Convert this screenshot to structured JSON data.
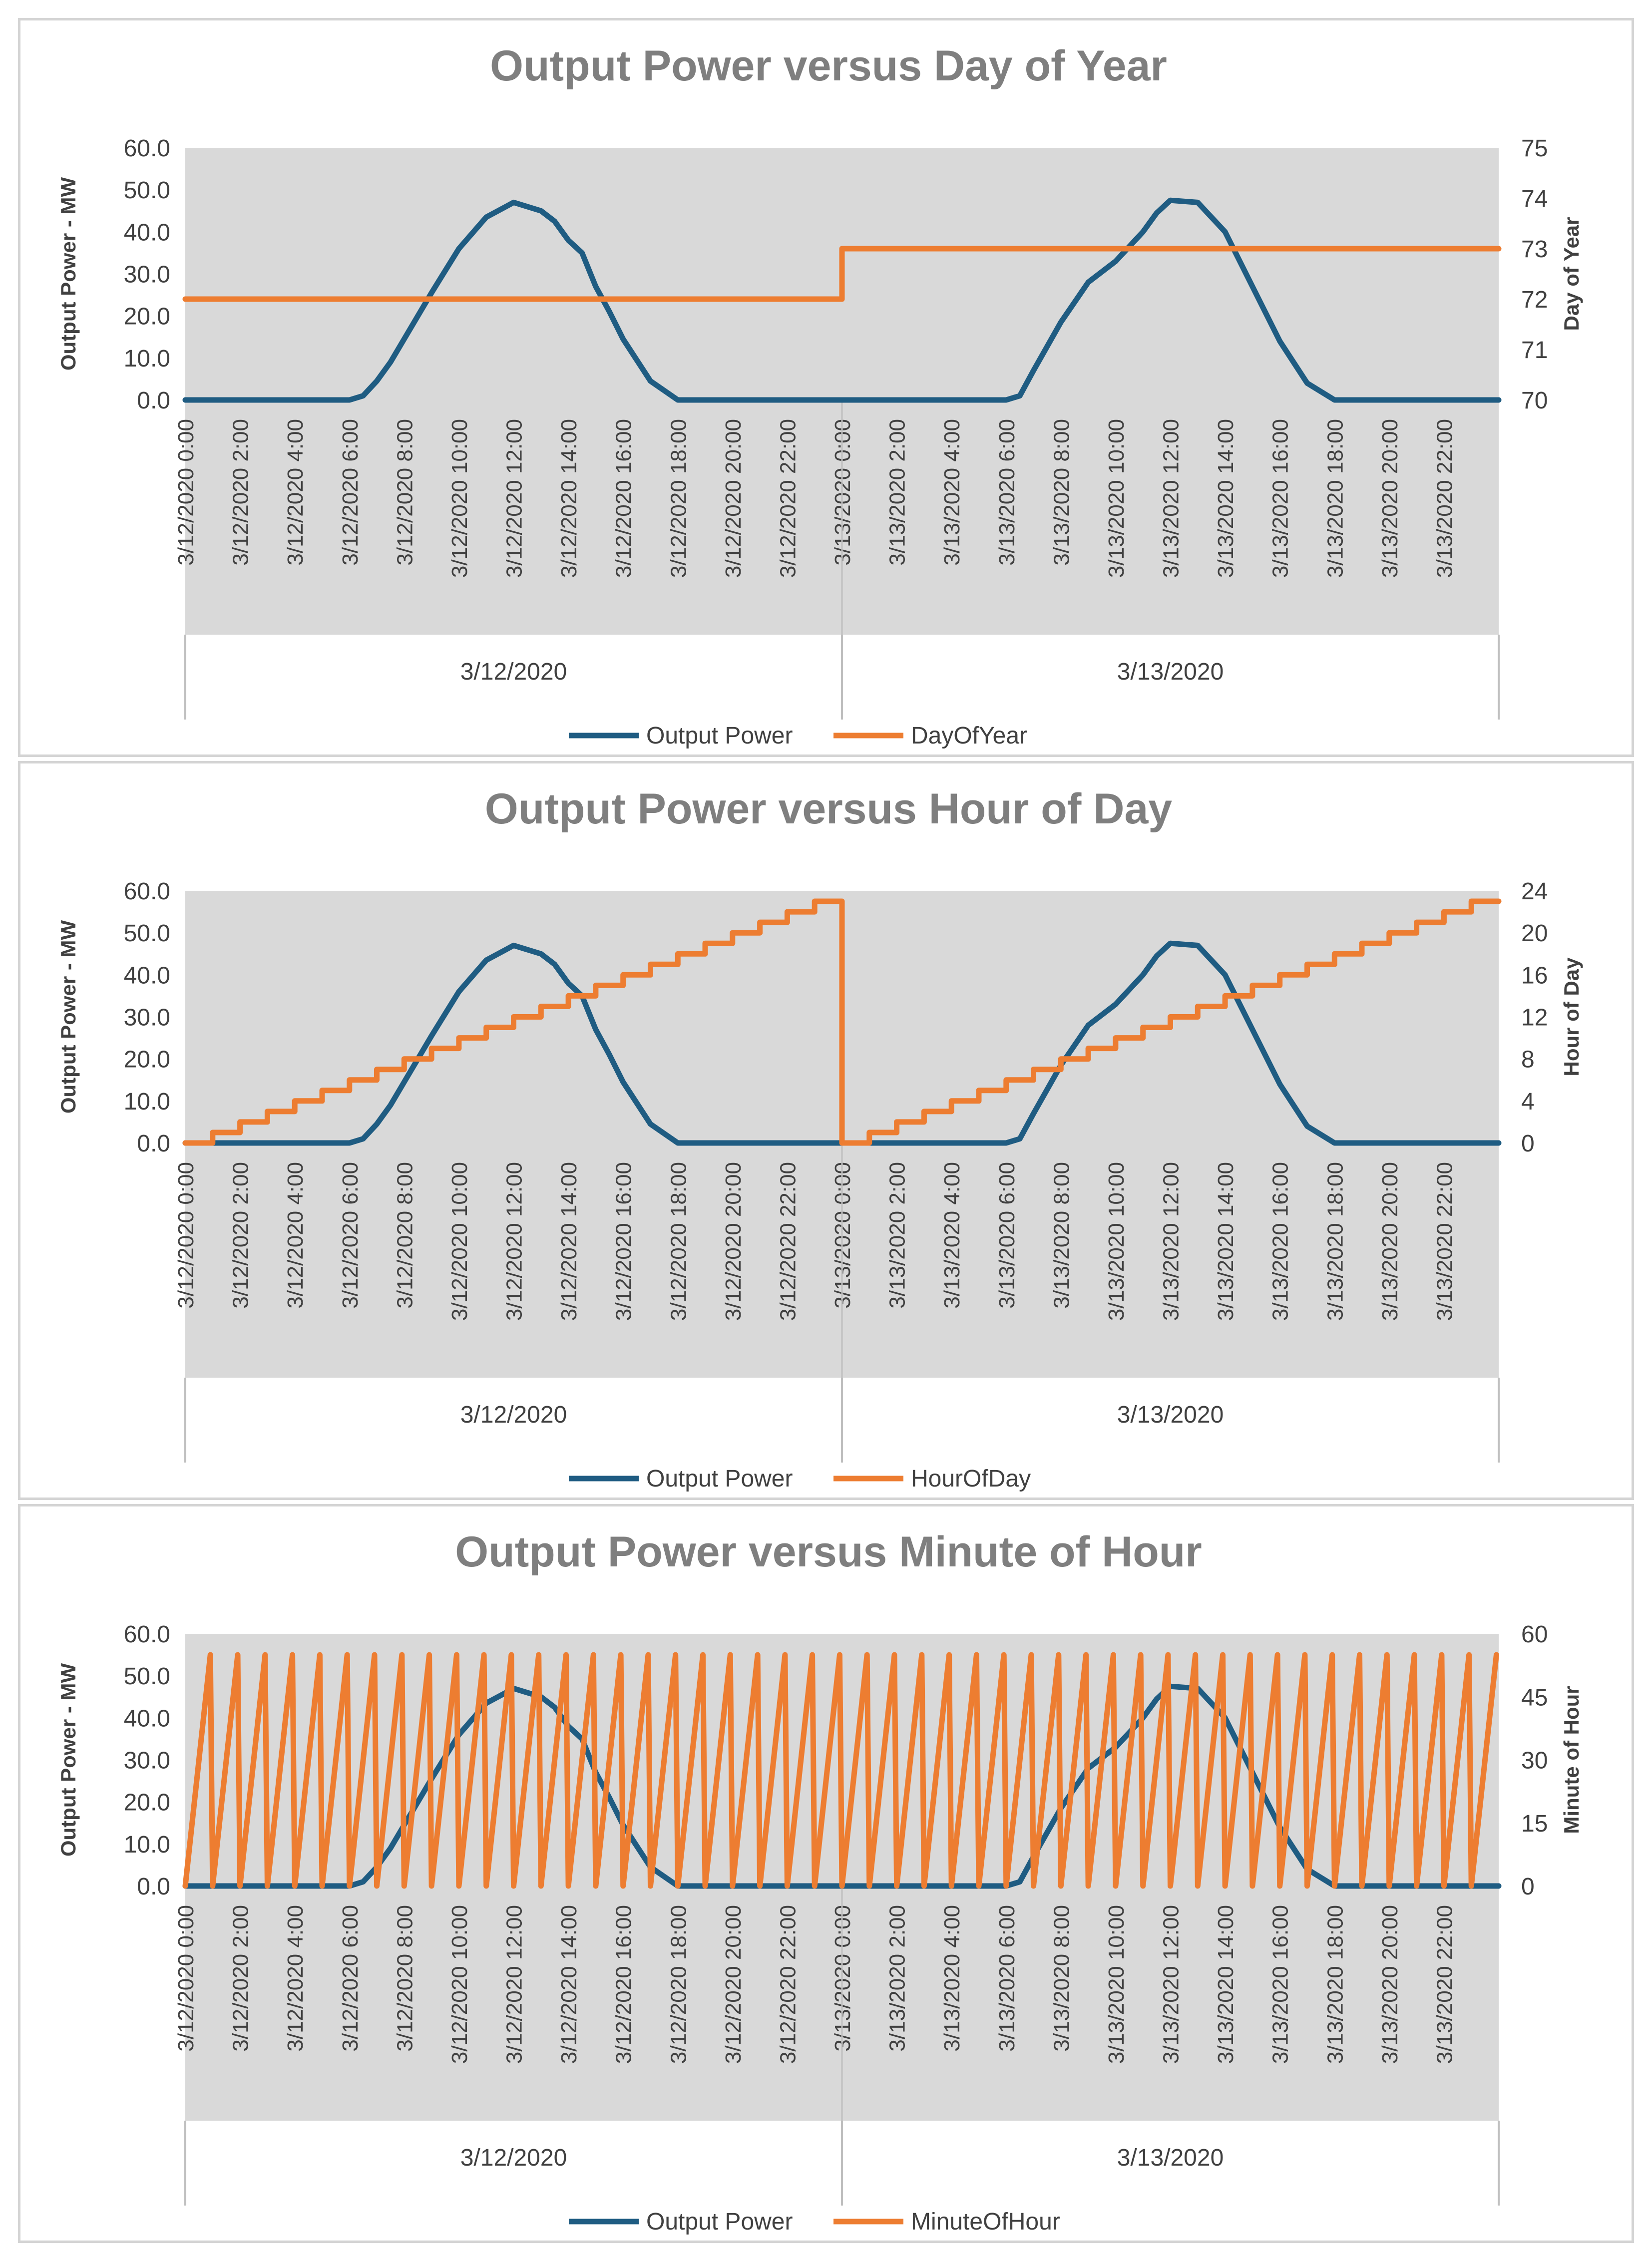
{
  "chart_data": [
    {
      "type": "line",
      "title": "Output Power versus Day of Year",
      "ylabel": "Output Power - MW",
      "y2label": "Day of Year",
      "ylim": [
        0,
        60
      ],
      "y2lim": [
        70,
        75
      ],
      "yticks": [
        "0.0",
        "10.0",
        "20.0",
        "30.0",
        "40.0",
        "50.0",
        "60.0"
      ],
      "y2ticks": [
        "70",
        "71",
        "72",
        "73",
        "74",
        "75"
      ],
      "x_tick_labels": [
        "3/12/2020 0:00",
        "3/12/2020 2:00",
        "3/12/2020 4:00",
        "3/12/2020 6:00",
        "3/12/2020 8:00",
        "3/12/2020 10:00",
        "3/12/2020 12:00",
        "3/12/2020 14:00",
        "3/12/2020 16:00",
        "3/12/2020 18:00",
        "3/12/2020 20:00",
        "3/12/2020 22:00",
        "3/13/2020 0:00",
        "3/13/2020 2:00",
        "3/13/2020 4:00",
        "3/13/2020 6:00",
        "3/13/2020 8:00",
        "3/13/2020 10:00",
        "3/13/2020 12:00",
        "3/13/2020 14:00",
        "3/13/2020 16:00",
        "3/13/2020 18:00",
        "3/13/2020 20:00",
        "3/13/2020 22:00"
      ],
      "date_groups": [
        "3/12/2020",
        "3/13/2020"
      ],
      "x_range_hours": [
        0,
        48
      ],
      "grid": false,
      "legend": "bottom",
      "series": [
        {
          "name": "Output Power",
          "axis": "primary",
          "color": "#1f5c82",
          "x_hours": [
            0,
            6,
            6.5,
            7,
            7.5,
            8,
            9,
            10,
            11,
            12,
            13,
            13.5,
            14,
            14.5,
            15,
            15.5,
            16,
            17,
            18,
            30,
            30.5,
            31,
            32,
            33,
            34,
            34.5,
            35,
            35.5,
            36,
            37,
            38,
            39,
            40,
            41,
            42,
            48
          ],
          "values": [
            0.0,
            0.0,
            1.0,
            4.5,
            9.0,
            14.5,
            25.5,
            36.0,
            43.5,
            47.0,
            45.0,
            42.5,
            38.0,
            35.0,
            27.0,
            21.0,
            14.5,
            4.5,
            0.0,
            0.0,
            1.0,
            7.0,
            18.5,
            28.0,
            33.0,
            36.5,
            40.0,
            44.5,
            47.5,
            47.0,
            40.0,
            27.0,
            14.0,
            4.0,
            0.0,
            0.0
          ]
        },
        {
          "name": "DayOfYear",
          "axis": "secondary",
          "color": "#ed7d31",
          "x_hours": [
            0,
            24,
            24,
            48
          ],
          "values": [
            72,
            72,
            73,
            73
          ]
        }
      ]
    },
    {
      "type": "line",
      "title": "Output Power versus Hour of Day",
      "ylabel": "Output Power - MW",
      "y2label": "Hour of Day",
      "ylim": [
        0,
        60
      ],
      "y2lim": [
        0,
        24
      ],
      "yticks": [
        "0.0",
        "10.0",
        "20.0",
        "30.0",
        "40.0",
        "50.0",
        "60.0"
      ],
      "y2ticks": [
        "0",
        "4",
        "8",
        "12",
        "16",
        "20",
        "24"
      ],
      "x_tick_labels": [
        "3/12/2020 0:00",
        "3/12/2020 2:00",
        "3/12/2020 4:00",
        "3/12/2020 6:00",
        "3/12/2020 8:00",
        "3/12/2020 10:00",
        "3/12/2020 12:00",
        "3/12/2020 14:00",
        "3/12/2020 16:00",
        "3/12/2020 18:00",
        "3/12/2020 20:00",
        "3/12/2020 22:00",
        "3/13/2020 0:00",
        "3/13/2020 2:00",
        "3/13/2020 4:00",
        "3/13/2020 6:00",
        "3/13/2020 8:00",
        "3/13/2020 10:00",
        "3/13/2020 12:00",
        "3/13/2020 14:00",
        "3/13/2020 16:00",
        "3/13/2020 18:00",
        "3/13/2020 20:00",
        "3/13/2020 22:00"
      ],
      "date_groups": [
        "3/12/2020",
        "3/13/2020"
      ],
      "x_range_hours": [
        0,
        48
      ],
      "grid": false,
      "legend": "bottom",
      "series": [
        {
          "name": "Output Power",
          "axis": "primary",
          "color": "#1f5c82",
          "x_hours": [
            0,
            6,
            6.5,
            7,
            7.5,
            8,
            9,
            10,
            11,
            12,
            13,
            13.5,
            14,
            14.5,
            15,
            15.5,
            16,
            17,
            18,
            30,
            30.5,
            31,
            32,
            33,
            34,
            34.5,
            35,
            35.5,
            36,
            37,
            38,
            39,
            40,
            41,
            42,
            48
          ],
          "values": [
            0.0,
            0.0,
            1.0,
            4.5,
            9.0,
            14.5,
            25.5,
            36.0,
            43.5,
            47.0,
            45.0,
            42.5,
            38.0,
            35.0,
            27.0,
            21.0,
            14.5,
            4.5,
            0.0,
            0.0,
            1.0,
            7.0,
            18.5,
            28.0,
            33.0,
            36.5,
            40.0,
            44.5,
            47.5,
            47.0,
            40.0,
            27.0,
            14.0,
            4.0,
            0.0,
            0.0
          ]
        },
        {
          "name": "HourOfDay",
          "axis": "secondary",
          "color": "#ed7d31",
          "pattern": "hourly-steps"
        }
      ]
    },
    {
      "type": "line",
      "title": "Output Power versus Minute of Hour",
      "ylabel": "Output Power - MW",
      "y2label": "Minute of Hour",
      "ylim": [
        0,
        60
      ],
      "y2lim": [
        0,
        60
      ],
      "yticks": [
        "0.0",
        "10.0",
        "20.0",
        "30.0",
        "40.0",
        "50.0",
        "60.0"
      ],
      "y2ticks": [
        "0",
        "15",
        "30",
        "45",
        "60"
      ],
      "x_tick_labels": [
        "3/12/2020 0:00",
        "3/12/2020 2:00",
        "3/12/2020 4:00",
        "3/12/2020 6:00",
        "3/12/2020 8:00",
        "3/12/2020 10:00",
        "3/12/2020 12:00",
        "3/12/2020 14:00",
        "3/12/2020 16:00",
        "3/12/2020 18:00",
        "3/12/2020 20:00",
        "3/12/2020 22:00",
        "3/13/2020 0:00",
        "3/13/2020 2:00",
        "3/13/2020 4:00",
        "3/13/2020 6:00",
        "3/13/2020 8:00",
        "3/13/2020 10:00",
        "3/13/2020 12:00",
        "3/13/2020 14:00",
        "3/13/2020 16:00",
        "3/13/2020 18:00",
        "3/13/2020 20:00",
        "3/13/2020 22:00"
      ],
      "date_groups": [
        "3/12/2020",
        "3/13/2020"
      ],
      "x_range_hours": [
        0,
        48
      ],
      "grid": false,
      "legend": "bottom",
      "series": [
        {
          "name": "Output Power",
          "axis": "primary",
          "color": "#1f5c82",
          "x_hours": [
            0,
            6,
            6.5,
            7,
            7.5,
            8,
            9,
            10,
            11,
            12,
            13,
            13.5,
            14,
            14.5,
            15,
            15.5,
            16,
            17,
            18,
            30,
            30.5,
            31,
            32,
            33,
            34,
            34.5,
            35,
            35.5,
            36,
            37,
            38,
            39,
            40,
            41,
            42,
            48
          ],
          "values": [
            0.0,
            0.0,
            1.0,
            4.5,
            9.0,
            14.5,
            25.5,
            36.0,
            43.5,
            47.0,
            45.0,
            42.5,
            38.0,
            35.0,
            27.0,
            21.0,
            14.5,
            4.5,
            0.0,
            0.0,
            1.0,
            7.0,
            18.5,
            28.0,
            33.0,
            36.5,
            40.0,
            44.5,
            47.5,
            47.0,
            40.0,
            27.0,
            14.0,
            4.0,
            0.0,
            0.0
          ]
        },
        {
          "name": "MinuteOfHour",
          "axis": "secondary",
          "color": "#ed7d31",
          "pattern": "sawtooth",
          "range": [
            0,
            55
          ]
        }
      ]
    }
  ],
  "colors": {
    "panel_border": "#d4d4d4",
    "plot_bg": "#d9d9d9",
    "text": "#404040",
    "title": "#7f7f7f",
    "output_power": "#1f5c82",
    "secondary_series": "#ed7d31"
  }
}
